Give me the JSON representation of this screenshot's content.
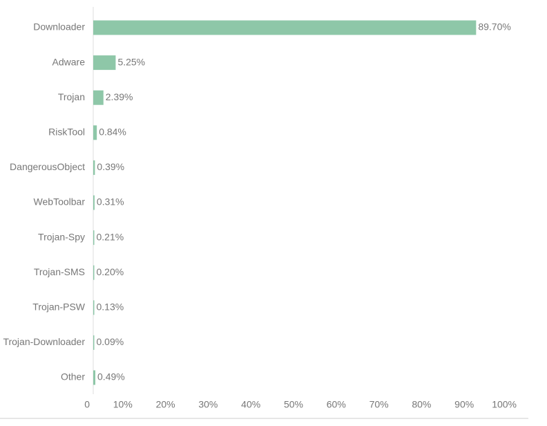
{
  "chart_data": {
    "type": "hbar",
    "categories": [
      "Downloader",
      "Adware",
      "Trojan",
      "RiskTool",
      "DangerousObject",
      "WebToolbar",
      "Trojan-Spy",
      "Trojan-SMS",
      "Trojan-PSW",
      "Trojan-Downloader",
      "Other"
    ],
    "values": [
      89.7,
      5.25,
      2.39,
      0.84,
      0.39,
      0.31,
      0.21,
      0.2,
      0.13,
      0.09,
      0.49
    ],
    "value_labels": [
      "89.70%",
      "5.25%",
      "2.39%",
      "0.84%",
      "0.39%",
      "0.31%",
      "0.21%",
      "0.20%",
      "0.13%",
      "0.09%",
      "0.49%"
    ],
    "color": "#8ec7a8",
    "xlim": [
      0,
      100
    ],
    "xticks": [
      0,
      {
        "value": 10,
        "label": "10%"
      },
      {
        "value": 20,
        "label": "20%"
      },
      {
        "value": 30,
        "label": "30%"
      },
      {
        "value": 40,
        "label": "40%"
      },
      {
        "value": 50,
        "label": "50%"
      },
      {
        "value": 60,
        "label": "60%"
      },
      {
        "value": 70,
        "label": "70%"
      },
      {
        "value": 80,
        "label": "80%"
      },
      {
        "value": 90,
        "label": "90%"
      },
      {
        "value": 100,
        "label": "100%"
      }
    ],
    "grid": false
  }
}
